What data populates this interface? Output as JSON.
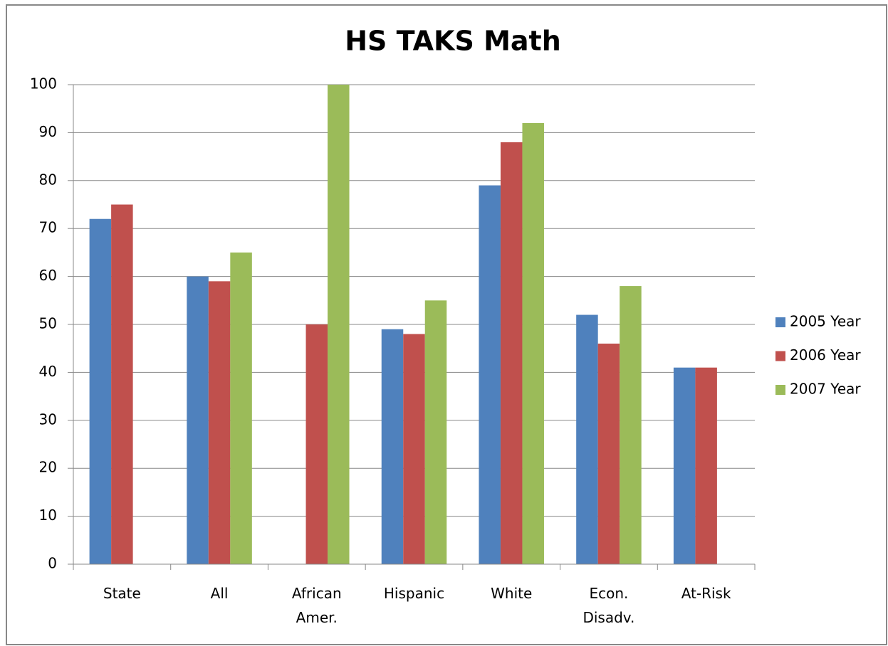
{
  "chart_data": {
    "type": "bar",
    "title": "HS TAKS Math",
    "categories": [
      "State",
      "All",
      "African Amer.",
      "Hispanic",
      "White",
      "Econ. Disadv.",
      "At-Risk"
    ],
    "series": [
      {
        "name": "2005 Year",
        "color": "#4f81bd",
        "values": [
          72,
          60,
          null,
          49,
          79,
          52,
          41
        ]
      },
      {
        "name": "2006 Year",
        "color": "#c0504d",
        "values": [
          75,
          59,
          50,
          48,
          88,
          46,
          41
        ]
      },
      {
        "name": "2007 Year",
        "color": "#9bbb59",
        "values": [
          null,
          65,
          100,
          55,
          92,
          58,
          null
        ]
      }
    ],
    "ylim": [
      0,
      100
    ],
    "yticks": [
      0,
      10,
      20,
      30,
      40,
      50,
      60,
      70,
      80,
      90,
      100
    ],
    "grid": true,
    "legend": "right"
  }
}
